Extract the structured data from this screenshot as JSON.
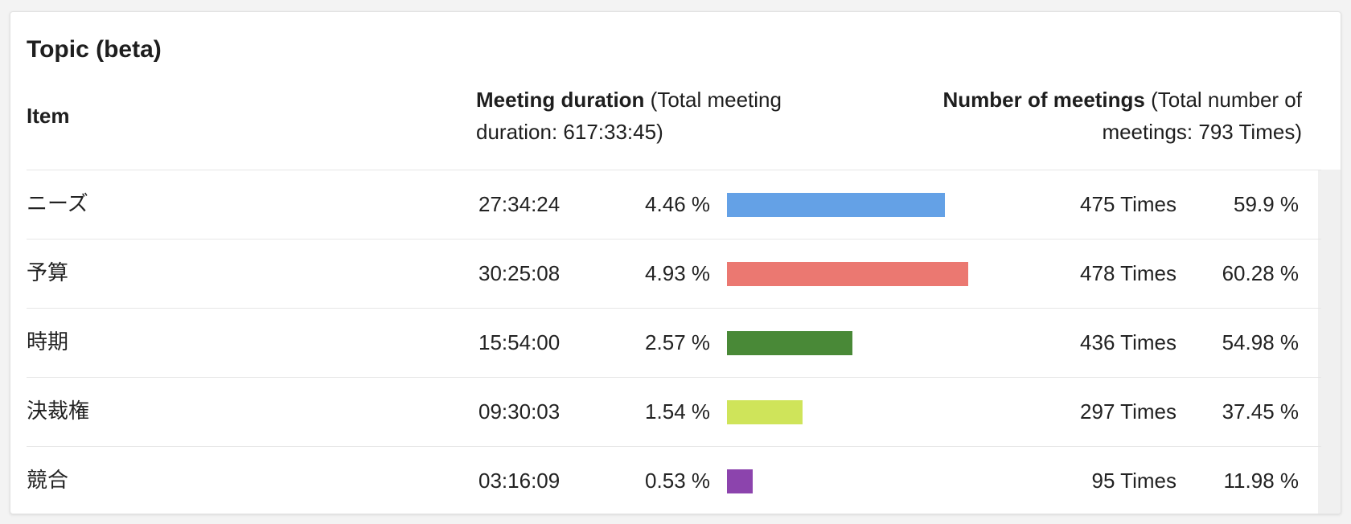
{
  "panel": {
    "title": "Topic (beta)"
  },
  "header": {
    "item_label": "Item",
    "duration_bold": "Meeting duration",
    "duration_note": "(Total meeting duration: 617:33:45)",
    "meetings_bold": "Number of meetings",
    "meetings_note": "(Total number of meetings: 793 Times)"
  },
  "bar_max_percent": 4.93,
  "rows": [
    {
      "name": "ニーズ",
      "duration": "27:34:24",
      "duration_pct": "4.46 %",
      "bar_value": 4.46,
      "bar_color": "#64a1e6",
      "times": "475 Times",
      "times_pct": "59.9 %"
    },
    {
      "name": "予算",
      "duration": "30:25:08",
      "duration_pct": "4.93 %",
      "bar_value": 4.93,
      "bar_color": "#eb7871",
      "times": "478 Times",
      "times_pct": "60.28 %"
    },
    {
      "name": "時期",
      "duration": "15:54:00",
      "duration_pct": "2.57 %",
      "bar_value": 2.57,
      "bar_color": "#498937",
      "times": "436 Times",
      "times_pct": "54.98 %"
    },
    {
      "name": "決裁権",
      "duration": "09:30:03",
      "duration_pct": "1.54 %",
      "bar_value": 1.54,
      "bar_color": "#cfe45a",
      "times": "297 Times",
      "times_pct": "37.45 %"
    },
    {
      "name": "競合",
      "duration": "03:16:09",
      "duration_pct": "0.53 %",
      "bar_value": 0.53,
      "bar_color": "#8c44ad",
      "times": "95 Times",
      "times_pct": "11.98 %"
    }
  ]
}
